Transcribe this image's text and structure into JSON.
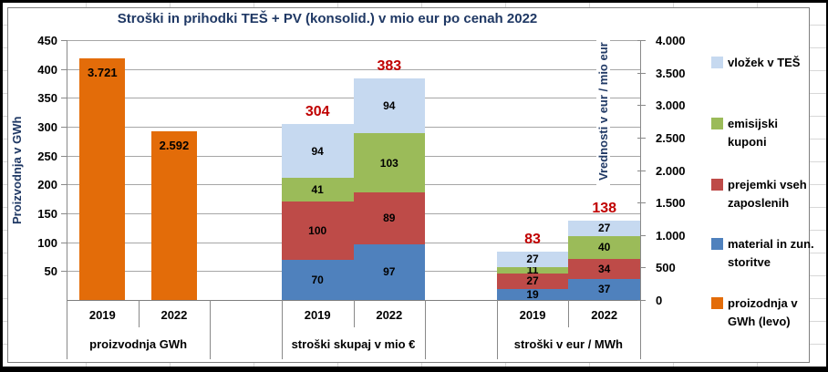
{
  "title": "Stroški in prihodki TEŠ + PV (konsolid.) v mio eur po cenah 2022",
  "colors": {
    "orange": "#E36C09",
    "blue": "#4F81BD",
    "red": "#BE4B48",
    "green": "#9BBB59",
    "light_blue": "#C6D9F0",
    "total_label": "#C00000",
    "title_text": "#1F3864",
    "gridline": "#A6A6A6"
  },
  "legend": {
    "items": [
      {
        "label": "vložek v TEŠ",
        "color": "#C6D9F0"
      },
      {
        "label": "emisijski kuponi",
        "color": "#9BBB59"
      },
      {
        "label": "prejemki vseh zaposlenih",
        "color": "#BE4B48"
      },
      {
        "label": "material in zun. storitve",
        "color": "#4F81BD"
      },
      {
        "label": "proizodnja v GWh (levo)",
        "color": "#E36C09"
      }
    ]
  },
  "chart_data": {
    "type": "bar",
    "subtype": "combo: clustered orange bars (right axis) + stacked cost bars (left axis)",
    "title": "Stroški in prihodki TEŠ + PV (konsolid.) v mio eur po cenah 2022",
    "left_axis": {
      "label": "Proizvodnja v GWh",
      "range": [
        0,
        450
      ],
      "tick_step": 50,
      "tick_labels": [
        "450",
        "400",
        "350",
        "300",
        "250",
        "200",
        "150",
        "100",
        "50"
      ]
    },
    "right_axis": {
      "label": "Vrednosti v eur / mio eur",
      "range": [
        0,
        4000
      ],
      "tick_step": 500,
      "tick_labels": [
        "4.000",
        "3.500",
        "3.000",
        "2.500",
        "2.000",
        "1.500",
        "1.000",
        "500",
        "0"
      ]
    },
    "stack_order_bottom_up": [
      "material in zun. storitve",
      "prejemki vseh zaposlenih",
      "emisijski kuponi",
      "vložek v TEŠ"
    ],
    "groups": [
      {
        "label": "proizvodnja GWh",
        "type": "single",
        "series": "proizodnja v GWh (levo)",
        "axis": "right",
        "bars": [
          {
            "year": "2019",
            "value": 3721,
            "value_label": "3.721"
          },
          {
            "year": "2022",
            "value": 2592,
            "value_label": "2.592"
          }
        ]
      },
      {
        "label": "stroški skupaj v mio €",
        "type": "stacked",
        "axis": "left",
        "bars": [
          {
            "year": "2019",
            "total_label": "304",
            "segments": [
              70,
              100,
              41,
              94
            ]
          },
          {
            "year": "2022",
            "total_label": "383",
            "segments": [
              97,
              89,
              103,
              94
            ]
          }
        ]
      },
      {
        "label": "stroški v eur / MWh",
        "type": "stacked",
        "axis": "left",
        "bars": [
          {
            "year": "2019",
            "total_label": "83",
            "segments": [
              19,
              27,
              11,
              27
            ]
          },
          {
            "year": "2022",
            "total_label": "138",
            "segments": [
              37,
              34,
              40,
              27
            ]
          }
        ]
      }
    ]
  }
}
